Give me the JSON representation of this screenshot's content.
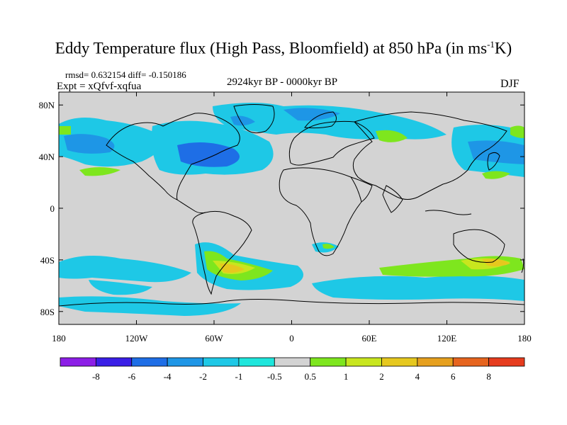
{
  "title": {
    "main": "Eddy Temperature flux (High Pass, Bloomfield) at 850 hPa (in ms",
    "sup": "-1",
    "unit_end": "K)"
  },
  "stats": "rmsd= 0.632154 diff= -0.150186",
  "experiment": "Expt = xQfvf-xqfua",
  "period": "2924kyr BP - 0000kyr BP",
  "season": "DJF",
  "map": {
    "projection": "cylindrical-equidistant",
    "lon_range": [
      -180,
      180
    ],
    "lat_range": [
      -90,
      90
    ],
    "lat_ticks": [
      {
        "value": 80,
        "label": "80N"
      },
      {
        "value": 40,
        "label": "40N"
      },
      {
        "value": 0,
        "label": "0"
      },
      {
        "value": -40,
        "label": "40S"
      },
      {
        "value": -80,
        "label": "80S"
      }
    ],
    "lon_ticks": [
      {
        "value": -180,
        "label": "180"
      },
      {
        "value": -120,
        "label": "120W"
      },
      {
        "value": -60,
        "label": "60W"
      },
      {
        "value": 0,
        "label": "0"
      },
      {
        "value": 60,
        "label": "60E"
      },
      {
        "value": 120,
        "label": "120E"
      },
      {
        "value": 180,
        "label": "180"
      }
    ],
    "background_color": "#d3d3d3"
  },
  "colorbar": {
    "colors": [
      "#8c1ee6",
      "#3a1ee6",
      "#1e6ee6",
      "#1e96e6",
      "#1ec8e6",
      "#1ee6dc",
      "#d3d3d3",
      "#7ee61e",
      "#c8e61e",
      "#e6c81e",
      "#e6a01e",
      "#e6641e",
      "#e63c1e"
    ],
    "labels": [
      "-8",
      "-6",
      "-4",
      "-2",
      "-1",
      "-0.5",
      "0.5",
      "1",
      "2",
      "4",
      "6",
      "8"
    ]
  }
}
